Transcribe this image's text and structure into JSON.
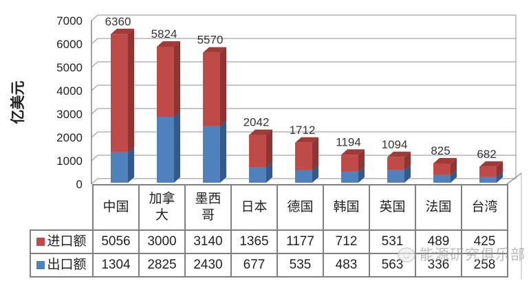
{
  "chart_data": {
    "type": "bar",
    "subtype": "stacked-3d-column-with-data-table",
    "title": "",
    "ylabel": "亿美元",
    "xlabel": "",
    "ylim": [
      0,
      7000
    ],
    "y_ticks": [
      0,
      1000,
      2000,
      3000,
      4000,
      5000,
      6000,
      7000
    ],
    "grid": true,
    "legend_position": "data-table-left",
    "categories": [
      "中国",
      "加拿大",
      "墨西哥",
      "日本",
      "德国",
      "韩国",
      "英国",
      "法国",
      "台湾"
    ],
    "series": [
      {
        "name": "进口额",
        "role": "import",
        "stack_order": "top",
        "values": [
          5056,
          3000,
          3140,
          1365,
          1177,
          712,
          531,
          489,
          425
        ]
      },
      {
        "name": "出口额",
        "role": "export",
        "stack_order": "bottom",
        "values": [
          1304,
          2825,
          2430,
          677,
          535,
          483,
          563,
          336,
          258
        ]
      }
    ],
    "total_labels": [
      6360,
      5824,
      5570,
      2042,
      1712,
      1194,
      1094,
      825,
      682
    ]
  },
  "colors": {
    "import_front": "#be4b48",
    "import_side": "#8e3432",
    "import_top": "#a23a37",
    "export_front": "#4f81bd",
    "export_side": "#36598c",
    "export_top": "#3f69a6",
    "grid": "#8c8c8c",
    "axis": "#808080",
    "text": "#1f1f1f",
    "table_border": "#7f7f7f",
    "watermark": "#919191"
  },
  "watermark": {
    "text": "能源研究俱乐部"
  }
}
